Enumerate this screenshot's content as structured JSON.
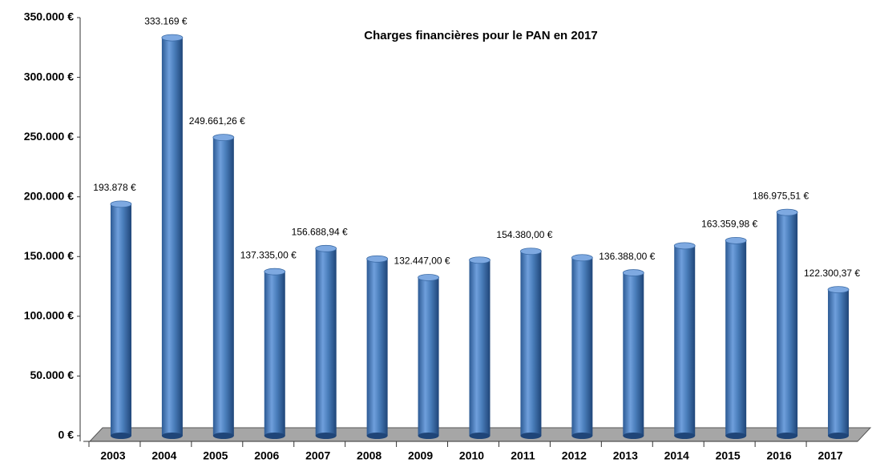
{
  "chart_data": {
    "type": "bar3d",
    "title": "Charges financières pour le PAN en 2017",
    "categories": [
      "2003",
      "2004",
      "2005",
      "2006",
      "2007",
      "2008",
      "2009",
      "2010",
      "2011",
      "2012",
      "2013",
      "2014",
      "2015",
      "2016",
      "2017"
    ],
    "values": [
      193878,
      333169,
      249661.26,
      137335.0,
      156688.94,
      148000,
      132447.0,
      147000,
      154380.0,
      149000,
      136388.0,
      159000,
      163359.98,
      186975.51,
      122300.37
    ],
    "value_labels": [
      "193.878 €",
      "333.169 €",
      "249.661,26 €",
      "137.335,00 €",
      "156.688,94 €",
      null,
      "132.447,00 €",
      null,
      "154.380,00 €",
      null,
      "136.388,00 €",
      null,
      "163.359,98 €",
      "186.975,51 €",
      "122.300,37 €"
    ],
    "color": "#4a7ebb",
    "ylim": [
      0,
      350000
    ],
    "yticks": [
      {
        "value": 0,
        "label": "0 €"
      },
      {
        "value": 50000,
        "label": "50.000 €"
      },
      {
        "value": 100000,
        "label": "100.000 €"
      },
      {
        "value": 150000,
        "label": "150.000 €"
      },
      {
        "value": 200000,
        "label": "200.000 €"
      },
      {
        "value": 250000,
        "label": "250.000 €"
      },
      {
        "value": 300000,
        "label": "300.000 €"
      },
      {
        "value": 350000,
        "label": "350.000 €"
      }
    ]
  }
}
